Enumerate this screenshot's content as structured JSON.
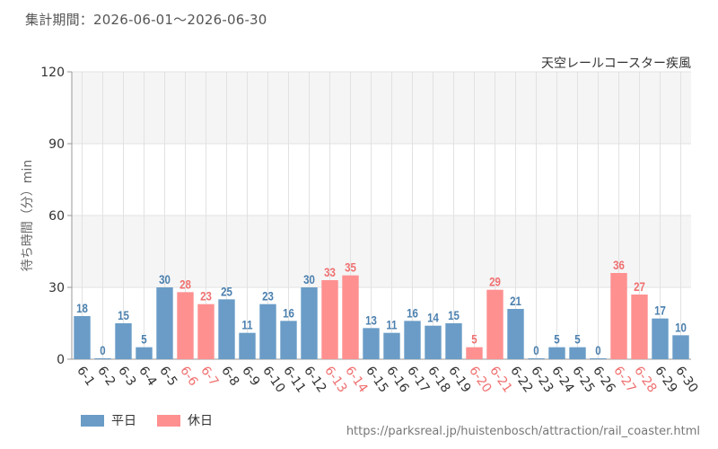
{
  "period_label": "集計期間：2026-06-01～2026-06-30",
  "source_url": "https://parksreal.jp/huistenbosch/attraction/rail_coaster.html",
  "colors": {
    "weekday": "#6a9cc7",
    "weekday_label": "#4a7fae",
    "holiday": "#ff9090",
    "holiday_label": "#f07070",
    "band": "#f5f5f5",
    "grid": "#e2e2e2"
  },
  "chart_data": {
    "type": "bar",
    "title": "天空レールコースター疾風",
    "ylabel": "待ち時間（分）min",
    "xlabel": "",
    "ylim": [
      0,
      120
    ],
    "yticks": [
      0,
      30,
      60,
      90,
      120
    ],
    "grid": true,
    "legend": {
      "position": "bottom-left",
      "entries": [
        {
          "key": "weekday",
          "label": "平日"
        },
        {
          "key": "holiday",
          "label": "休日"
        }
      ]
    },
    "categories": [
      "6-1",
      "6-2",
      "6-3",
      "6-4",
      "6-5",
      "6-6",
      "6-7",
      "6-8",
      "6-9",
      "6-10",
      "6-11",
      "6-12",
      "6-13",
      "6-14",
      "6-15",
      "6-16",
      "6-17",
      "6-18",
      "6-19",
      "6-20",
      "6-21",
      "6-22",
      "6-23",
      "6-24",
      "6-25",
      "6-26",
      "6-27",
      "6-28",
      "6-29",
      "6-30"
    ],
    "values": [
      18,
      0,
      15,
      5,
      30,
      28,
      23,
      25,
      11,
      23,
      16,
      30,
      33,
      35,
      13,
      11,
      16,
      14,
      15,
      5,
      29,
      21,
      0,
      5,
      5,
      0,
      36,
      27,
      17,
      10
    ],
    "day_types": [
      "weekday",
      "weekday",
      "weekday",
      "weekday",
      "weekday",
      "holiday",
      "holiday",
      "weekday",
      "weekday",
      "weekday",
      "weekday",
      "weekday",
      "holiday",
      "holiday",
      "weekday",
      "weekday",
      "weekday",
      "weekday",
      "weekday",
      "holiday",
      "holiday",
      "weekday",
      "weekday",
      "weekday",
      "weekday",
      "weekday",
      "holiday",
      "holiday",
      "weekday",
      "weekday"
    ]
  }
}
